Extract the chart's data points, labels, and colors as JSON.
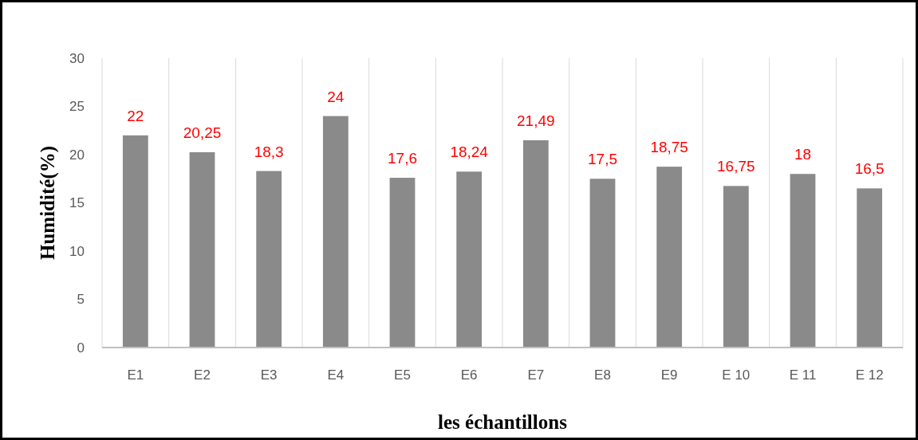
{
  "chart_data": {
    "type": "bar",
    "xlabel": "les échantillons",
    "ylabel": "Humidité(%)",
    "categories": [
      "E1",
      "E2",
      "E3",
      "E4",
      "E5",
      "E6",
      "E7",
      "E8",
      "E9",
      "E 10",
      "E 11",
      "E 12"
    ],
    "values": [
      22,
      20.25,
      18.3,
      24,
      17.6,
      18.24,
      21.49,
      17.5,
      18.75,
      16.75,
      18,
      16.5
    ],
    "value_labels": [
      "22",
      "20,25",
      "18,3",
      "24",
      "17,6",
      "18,24",
      "21,49",
      "17,5",
      "18,75",
      "16,75",
      "18",
      "16,5"
    ],
    "color": "#8a8a8a",
    "ylim": [
      0,
      30
    ],
    "yticks": [
      0,
      5,
      10,
      15,
      20,
      25,
      30
    ],
    "grid": "x"
  }
}
